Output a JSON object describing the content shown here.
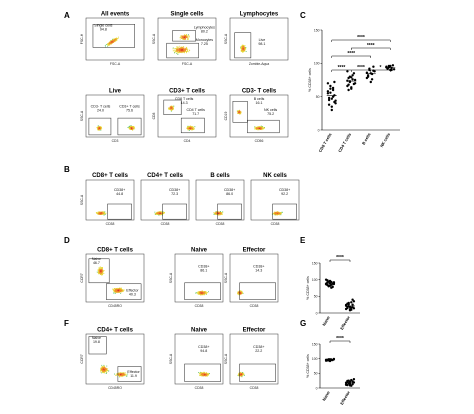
{
  "panel_letters": [
    "A",
    "B",
    "C",
    "D",
    "E",
    "F",
    "G"
  ],
  "A": {
    "plots": [
      {
        "title": "All events",
        "xlabel": "FSC-A",
        "ylabel": "FSC-H",
        "gates": [
          {
            "label": "Single cells",
            "value": "94.8"
          }
        ]
      },
      {
        "title": "Single cells",
        "xlabel": "FSC-A",
        "ylabel": "SSC-A",
        "gates": [
          {
            "label": "Monocytes",
            "value": "7.25"
          },
          {
            "label": "Lymphocytes",
            "value": "80.2"
          }
        ]
      },
      {
        "title": "Lymphocytes",
        "xlabel": "Zombie-Aqua",
        "ylabel": "SSC-A",
        "gates": [
          {
            "label": "Live",
            "value": "98.1"
          }
        ]
      },
      {
        "title": "Live",
        "xlabel": "CD3",
        "ylabel": "SSC-A",
        "gates": [
          {
            "label": "CD3- T cells",
            "value": "24.0"
          },
          {
            "label": "CD3+ T cells",
            "value": "75.6"
          }
        ]
      },
      {
        "title": "CD3+ T cells",
        "xlabel": "CD4",
        "ylabel": "CD8",
        "gates": [
          {
            "label": "CD8 T cells",
            "value": "14.3"
          },
          {
            "label": "CD4 T cells",
            "value": "71.7"
          }
        ]
      },
      {
        "title": "CD3- T cells",
        "xlabel": "CD56",
        "ylabel": "CD19",
        "gates": [
          {
            "label": "B cells",
            "value": "16.1"
          },
          {
            "label": "NK cells",
            "value": "75.2"
          }
        ]
      }
    ]
  },
  "B": {
    "ylabel": "SSC-A",
    "xlabel": "CD38",
    "plots": [
      {
        "title": "CD8+ T cells",
        "gate": "CD38+",
        "value": "44.8"
      },
      {
        "title": "CD4+ T cells",
        "gate": "CD38+",
        "value": "72.3"
      },
      {
        "title": "B cells",
        "gate": "CD38+",
        "value": "86.0"
      },
      {
        "title": "NK cells",
        "gate": "CD38+",
        "value": "92.2"
      }
    ]
  },
  "C": {
    "chart_data": {
      "type": "scatter",
      "ylabel": "% CD38+ cells",
      "ylim": [
        0,
        150
      ],
      "yticks": [
        "0",
        "50",
        "100",
        "150"
      ],
      "categories": [
        "CD8 T cells",
        "CD4 T cells",
        "B cells",
        "NK cells"
      ],
      "series": [
        {
          "values": [
            58,
            45,
            62,
            30,
            50,
            72,
            40,
            55,
            48,
            66,
            35,
            60,
            52,
            44,
            70,
            38,
            56,
            47,
            63,
            42
          ]
        },
        {
          "values": [
            74,
            68,
            80,
            62,
            76,
            85,
            70,
            66,
            78,
            72,
            64,
            82,
            69,
            75,
            88,
            60,
            73,
            79
          ]
        },
        {
          "values": [
            86,
            80,
            90,
            72,
            84,
            95,
            88,
            78,
            82,
            92,
            85,
            76,
            89
          ]
        },
        {
          "values": [
            94,
            92,
            96,
            90,
            93,
            97,
            91,
            95,
            92,
            94,
            96,
            90
          ]
        }
      ],
      "significance": [
        "****",
        "****",
        "****",
        "*",
        "****",
        "****"
      ]
    }
  },
  "D": {
    "plots": [
      {
        "title": "CD8+ T cells",
        "xlabel": "CD45RO",
        "ylabel": "CCR7",
        "gates": [
          {
            "label": "Naive",
            "value": "46.7"
          },
          {
            "label": "Effector",
            "value": "40.3"
          }
        ]
      },
      {
        "title": "Naive",
        "xlabel": "CD38",
        "ylabel": "SSC-A",
        "gates": [
          {
            "label": "CD38+",
            "value": "86.1"
          }
        ]
      },
      {
        "title": "Effector",
        "xlabel": "CD38",
        "ylabel": "SSC-A",
        "gates": [
          {
            "label": "CD38+",
            "value": "14.3"
          }
        ]
      }
    ]
  },
  "E": {
    "chart_data": {
      "type": "scatter",
      "ylabel": "% CD38+ cells",
      "ylim": [
        0,
        150
      ],
      "yticks": [
        "0",
        "50",
        "100",
        "150"
      ],
      "categories": [
        "Naive",
        "Effector"
      ],
      "series": [
        {
          "values": [
            88,
            92,
            80,
            96,
            85,
            78,
            90,
            100,
            84,
            94,
            82,
            76,
            88,
            92,
            86,
            98,
            81,
            89,
            93,
            79,
            87
          ]
        },
        {
          "values": [
            22,
            15,
            30,
            18,
            10,
            25,
            35,
            12,
            28,
            20,
            8,
            16,
            40,
            14,
            24,
            19,
            26,
            11,
            32,
            17
          ]
        }
      ],
      "significance": [
        "****"
      ]
    }
  },
  "F": {
    "plots": [
      {
        "title": "CD4+ T cells",
        "xlabel": "CD45RO",
        "ylabel": "CCR7",
        "gates": [
          {
            "label": "Naive",
            "value": "19.8"
          },
          {
            "label": "Effector",
            "value": "11.9"
          }
        ]
      },
      {
        "title": "Naive",
        "xlabel": "CD38",
        "ylabel": "SSC-A",
        "gates": [
          {
            "label": "CD38+",
            "value": "94.8"
          }
        ]
      },
      {
        "title": "Effector",
        "xlabel": "CD38",
        "ylabel": "SSC-A",
        "gates": [
          {
            "label": "CD38+",
            "value": "22.2"
          }
        ]
      }
    ]
  },
  "G": {
    "chart_data": {
      "type": "scatter",
      "ylabel": "% CD38+ cells",
      "ylim": [
        0,
        150
      ],
      "yticks": [
        "0",
        "50",
        "100",
        "150"
      ],
      "categories": [
        "Naive",
        "Effector"
      ],
      "series": [
        {
          "values": [
            96,
            94,
            98,
            92,
            97,
            95,
            99,
            93,
            96,
            94,
            98,
            95
          ]
        },
        {
          "values": [
            18,
            10,
            25,
            14,
            8,
            22,
            30,
            12,
            20,
            16,
            9,
            27,
            13,
            19,
            11,
            24,
            15,
            21
          ]
        }
      ],
      "significance": [
        "****"
      ]
    }
  }
}
